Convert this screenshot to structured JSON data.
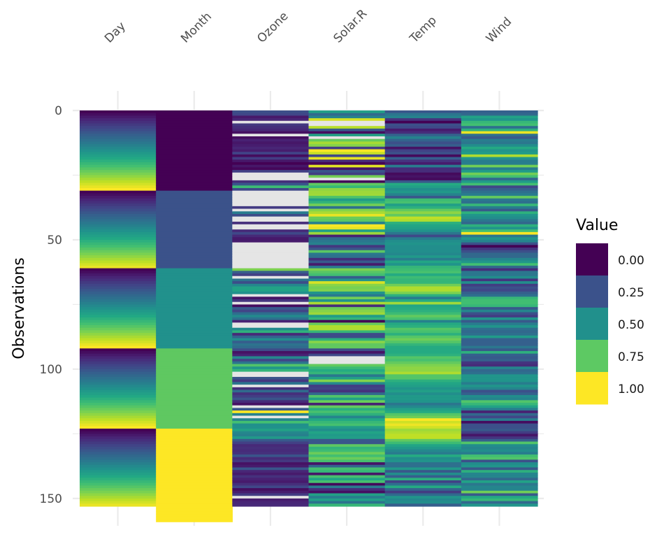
{
  "chart_data": {
    "type": "heatmap",
    "title": "",
    "xlabel": "",
    "ylabel": "Observations",
    "columns": [
      "Day",
      "Month",
      "Ozone",
      "Solar.R",
      "Temp",
      "Wind"
    ],
    "y_ticks": [
      0,
      50,
      100,
      150
    ],
    "ylim": [
      0,
      153
    ],
    "y_reversed": true,
    "grid": true,
    "color_scale": "viridis (per-column min-max normalized)",
    "missing_color": "#e5e5e5",
    "legend": {
      "title": "Value",
      "position": "right",
      "breaks": [
        "0.00",
        "0.25",
        "0.50",
        "0.75",
        "1.00"
      ],
      "colors": [
        "#440154",
        "#3b528b",
        "#21908c",
        "#5dc963",
        "#fde725"
      ]
    },
    "raw": {
      "Ozone": [
        41,
        36,
        12,
        18,
        null,
        28,
        23,
        19,
        8,
        null,
        7,
        16,
        11,
        14,
        18,
        14,
        34,
        6,
        30,
        11,
        1,
        11,
        4,
        32,
        null,
        null,
        null,
        23,
        45,
        115,
        37,
        null,
        null,
        null,
        null,
        null,
        null,
        29,
        null,
        71,
        39,
        null,
        null,
        23,
        null,
        null,
        21,
        37,
        20,
        12,
        13,
        null,
        null,
        null,
        null,
        null,
        null,
        null,
        null,
        null,
        null,
        135,
        49,
        32,
        null,
        64,
        40,
        77,
        97,
        97,
        85,
        null,
        10,
        27,
        null,
        7,
        48,
        35,
        61,
        79,
        63,
        16,
        null,
        null,
        80,
        108,
        20,
        52,
        82,
        50,
        64,
        59,
        39,
        9,
        16,
        78,
        35,
        66,
        122,
        89,
        110,
        null,
        null,
        44,
        28,
        65,
        null,
        22,
        59,
        23,
        31,
        44,
        21,
        9,
        null,
        45,
        168,
        73,
        null,
        76,
        118,
        84,
        85,
        96,
        78,
        73,
        91,
        47,
        32,
        20,
        23,
        21,
        24,
        44,
        21,
        28,
        9,
        13,
        46,
        18,
        13,
        24,
        16,
        13,
        23,
        36,
        7,
        14,
        30,
        null,
        14,
        18,
        20
      ],
      "Solar.R": [
        190,
        118,
        149,
        313,
        null,
        null,
        299,
        99,
        19,
        194,
        null,
        256,
        290,
        274,
        65,
        334,
        307,
        78,
        322,
        44,
        8,
        320,
        25,
        92,
        66,
        266,
        null,
        13,
        252,
        223,
        279,
        286,
        287,
        242,
        186,
        220,
        264,
        127,
        273,
        291,
        323,
        259,
        250,
        148,
        332,
        322,
        191,
        284,
        37,
        120,
        137,
        150,
        59,
        91,
        250,
        135,
        127,
        47,
        98,
        31,
        138,
        269,
        248,
        236,
        101,
        175,
        314,
        276,
        267,
        272,
        175,
        139,
        264,
        175,
        291,
        48,
        260,
        274,
        285,
        187,
        220,
        7,
        258,
        295,
        294,
        223,
        81,
        82,
        213,
        275,
        253,
        254,
        83,
        24,
        77,
        null,
        null,
        null,
        255,
        229,
        207,
        222,
        137,
        192,
        273,
        157,
        64,
        71,
        51,
        115,
        244,
        190,
        259,
        36,
        255,
        212,
        238,
        215,
        153,
        203,
        225,
        237,
        188,
        167,
        197,
        183,
        189,
        95,
        92,
        252,
        220,
        230,
        259,
        236,
        259,
        238,
        24,
        112,
        237,
        224,
        27,
        238,
        201,
        238,
        14,
        139,
        49,
        20,
        193,
        145,
        191,
        131,
        223
      ],
      "Temp": [
        67,
        72,
        74,
        62,
        56,
        66,
        65,
        59,
        61,
        69,
        74,
        69,
        66,
        68,
        58,
        64,
        66,
        57,
        68,
        62,
        59,
        73,
        61,
        61,
        57,
        58,
        57,
        67,
        81,
        79,
        76,
        78,
        74,
        67,
        84,
        85,
        79,
        82,
        87,
        90,
        87,
        93,
        92,
        82,
        80,
        79,
        77,
        72,
        65,
        73,
        76,
        77,
        76,
        76,
        76,
        75,
        78,
        73,
        80,
        77,
        83,
        84,
        85,
        81,
        84,
        83,
        83,
        88,
        92,
        92,
        89,
        82,
        73,
        81,
        91,
        80,
        81,
        82,
        84,
        87,
        85,
        74,
        81,
        82,
        86,
        85,
        82,
        86,
        88,
        86,
        83,
        81,
        81,
        81,
        82,
        86,
        85,
        87,
        89,
        90,
        90,
        92,
        86,
        86,
        82,
        80,
        79,
        77,
        79,
        76,
        78,
        78,
        77,
        72,
        75,
        79,
        81,
        86,
        88,
        97,
        94,
        96,
        94,
        91,
        92,
        93,
        93,
        87,
        84,
        80,
        78,
        75,
        73,
        81,
        76,
        77,
        71,
        71,
        78,
        67,
        76,
        68,
        82,
        64,
        71,
        81,
        69,
        63,
        70,
        77,
        75,
        76,
        68
      ],
      "Wind": [
        7.4,
        8.0,
        12.6,
        11.5,
        14.3,
        14.9,
        8.6,
        13.8,
        20.1,
        8.6,
        6.9,
        9.7,
        9.2,
        10.9,
        13.2,
        11.5,
        12.0,
        18.4,
        11.5,
        9.7,
        9.7,
        16.6,
        9.7,
        12.0,
        16.6,
        14.9,
        8.0,
        12.0,
        14.9,
        5.7,
        7.4,
        8.6,
        9.7,
        16.1,
        9.2,
        8.6,
        14.3,
        9.7,
        6.9,
        13.8,
        11.5,
        10.9,
        9.2,
        8.0,
        13.8,
        11.5,
        14.9,
        20.7,
        9.2,
        11.5,
        10.3,
        6.3,
        1.7,
        4.6,
        6.3,
        8.0,
        8.0,
        10.3,
        11.5,
        14.9,
        8.0,
        4.1,
        9.2,
        9.2,
        10.9,
        4.6,
        10.9,
        5.1,
        6.3,
        5.7,
        7.4,
        8.6,
        14.3,
        14.9,
        14.9,
        14.3,
        6.9,
        10.3,
        6.3,
        5.1,
        11.5,
        6.9,
        9.7,
        11.5,
        8.6,
        8.0,
        8.6,
        12.0,
        7.4,
        7.4,
        7.4,
        9.2,
        6.9,
        13.8,
        7.4,
        6.9,
        7.4,
        4.6,
        4.0,
        10.3,
        8.0,
        8.6,
        11.5,
        11.5,
        11.5,
        9.7,
        11.5,
        10.3,
        6.3,
        7.4,
        10.9,
        10.3,
        15.5,
        14.3,
        12.6,
        9.7,
        3.4,
        8.0,
        5.7,
        9.7,
        2.3,
        6.3,
        6.3,
        6.9,
        5.1,
        2.8,
        4.6,
        7.4,
        15.5,
        10.9,
        10.3,
        10.9,
        9.7,
        14.9,
        15.5,
        6.3,
        10.9,
        11.5,
        6.9,
        13.8,
        10.3,
        10.3,
        8.0,
        12.6,
        9.2,
        10.3,
        10.3,
        16.6,
        6.9,
        13.2,
        14.3,
        8.0,
        11.5
      ],
      "Month": [
        5,
        5,
        5,
        5,
        5,
        5,
        5,
        5,
        5,
        5,
        5,
        5,
        5,
        5,
        5,
        5,
        5,
        5,
        5,
        5,
        5,
        5,
        5,
        5,
        5,
        5,
        5,
        5,
        5,
        5,
        5,
        6,
        6,
        6,
        6,
        6,
        6,
        6,
        6,
        6,
        6,
        6,
        6,
        6,
        6,
        6,
        6,
        6,
        6,
        6,
        6,
        6,
        6,
        6,
        6,
        6,
        6,
        6,
        6,
        6,
        6,
        7,
        7,
        7,
        7,
        7,
        7,
        7,
        7,
        7,
        7,
        7,
        7,
        7,
        7,
        7,
        7,
        7,
        7,
        7,
        7,
        7,
        7,
        7,
        7,
        7,
        7,
        7,
        7,
        7,
        7,
        7,
        8,
        8,
        8,
        8,
        8,
        8,
        8,
        8,
        8,
        8,
        8,
        8,
        8,
        8,
        8,
        8,
        8,
        8,
        8,
        8,
        8,
        8,
        8,
        8,
        8,
        8,
        8,
        8,
        8,
        8,
        8,
        9,
        9,
        9,
        9,
        9,
        9,
        9,
        9,
        9,
        9,
        9,
        9,
        9,
        9,
        9,
        9,
        9,
        9,
        9,
        9,
        9,
        9,
        9,
        9,
        9,
        9,
        9,
        9,
        9,
        9,
        9,
        9,
        9,
        9,
        9,
        9
      ],
      "Day": [
        1,
        2,
        3,
        4,
        5,
        6,
        7,
        8,
        9,
        10,
        11,
        12,
        13,
        14,
        15,
        16,
        17,
        18,
        19,
        20,
        21,
        22,
        23,
        24,
        25,
        26,
        27,
        28,
        29,
        30,
        31,
        1,
        2,
        3,
        4,
        5,
        6,
        7,
        8,
        9,
        10,
        11,
        12,
        13,
        14,
        15,
        16,
        17,
        18,
        19,
        20,
        21,
        22,
        23,
        24,
        25,
        26,
        27,
        28,
        29,
        30,
        1,
        2,
        3,
        4,
        5,
        6,
        7,
        8,
        9,
        10,
        11,
        12,
        13,
        14,
        15,
        16,
        17,
        18,
        19,
        20,
        21,
        22,
        23,
        24,
        25,
        26,
        27,
        28,
        29,
        30,
        31,
        1,
        2,
        3,
        4,
        5,
        6,
        7,
        8,
        9,
        10,
        11,
        12,
        13,
        14,
        15,
        16,
        17,
        18,
        19,
        20,
        21,
        22,
        23,
        24,
        25,
        26,
        27,
        28,
        29,
        30,
        31,
        1,
        2,
        3,
        4,
        5,
        6,
        7,
        8,
        9,
        10,
        11,
        12,
        13,
        14,
        15,
        16,
        17,
        18,
        19,
        20,
        21,
        22,
        23,
        24,
        25,
        26,
        27,
        28,
        29,
        30
      ]
    }
  }
}
